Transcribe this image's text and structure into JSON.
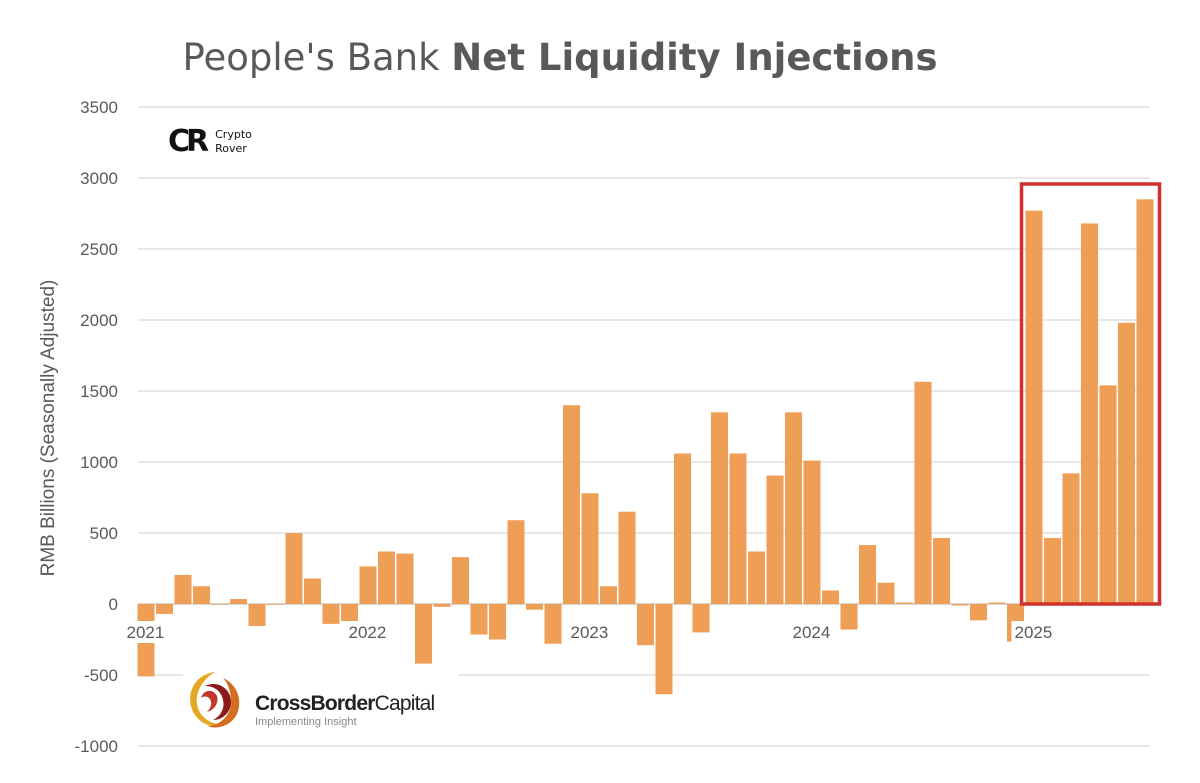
{
  "title": {
    "regular": "People's Bank ",
    "bold": "Net Liquidity Injections"
  },
  "logos": {
    "crypto_rover": {
      "mark": "CR",
      "line1": "Crypto",
      "line2": "Rover"
    },
    "crossborder": {
      "name_bold": "CrossBorder",
      "name_regular": "Capital",
      "tagline": "Implementing Insight"
    }
  },
  "colors": {
    "bar": "#EE9F55",
    "highlight": "#D32F2F",
    "grid": "#d9d9d9",
    "text": "#595959"
  },
  "chart_data": {
    "type": "bar",
    "title": "People's Bank Net Liquidity Injections",
    "ylabel": "RMB  Billions (Seasonally Adjusted)",
    "xlabel": "",
    "ylim": [
      -1000,
      3500
    ],
    "yticks": [
      3500,
      3000,
      2500,
      2000,
      1500,
      1000,
      500,
      0,
      -500,
      -1000
    ],
    "grid": true,
    "x_tick_labels": [
      {
        "label": "2021",
        "month": "2021-01"
      },
      {
        "label": "2022",
        "month": "2022-01"
      },
      {
        "label": "2023",
        "month": "2023-01"
      },
      {
        "label": "2024",
        "month": "2024-01"
      },
      {
        "label": "2025",
        "month": "2025-01"
      }
    ],
    "categories": [
      "2021-01",
      "2021-02",
      "2021-03",
      "2021-04",
      "2021-05",
      "2021-06",
      "2021-07",
      "2021-08",
      "2021-09",
      "2021-10",
      "2021-11",
      "2021-12",
      "2022-01",
      "2022-02",
      "2022-03",
      "2022-04",
      "2022-05",
      "2022-06",
      "2022-07",
      "2022-08",
      "2022-09",
      "2022-10",
      "2022-11",
      "2022-12",
      "2023-01",
      "2023-02",
      "2023-03",
      "2023-04",
      "2023-05",
      "2023-06",
      "2023-07",
      "2023-08",
      "2023-09",
      "2023-10",
      "2023-11",
      "2023-12",
      "2024-01",
      "2024-02",
      "2024-03",
      "2024-04",
      "2024-05",
      "2024-06",
      "2024-07",
      "2024-08",
      "2024-09",
      "2024-10",
      "2024-11",
      "2024-12",
      "2025-01",
      "2025-02",
      "2025-03",
      "2025-04",
      "2025-05",
      "2025-06",
      "2025-07"
    ],
    "values": [
      -510,
      -70,
      205,
      125,
      0,
      35,
      -155,
      0,
      500,
      180,
      -140,
      -120,
      265,
      370,
      355,
      -420,
      -20,
      330,
      -215,
      -250,
      590,
      -40,
      -280,
      1400,
      780,
      125,
      650,
      -290,
      -635,
      1060,
      -200,
      1350,
      1060,
      370,
      905,
      1350,
      1010,
      95,
      -180,
      415,
      150,
      10,
      1565,
      465,
      -10,
      -115,
      10,
      -265,
      2770,
      465,
      920,
      2680,
      1540,
      1980,
      2850
    ],
    "highlight": {
      "from": "2025-01",
      "to": "2025-07",
      "style": "red-box"
    }
  }
}
